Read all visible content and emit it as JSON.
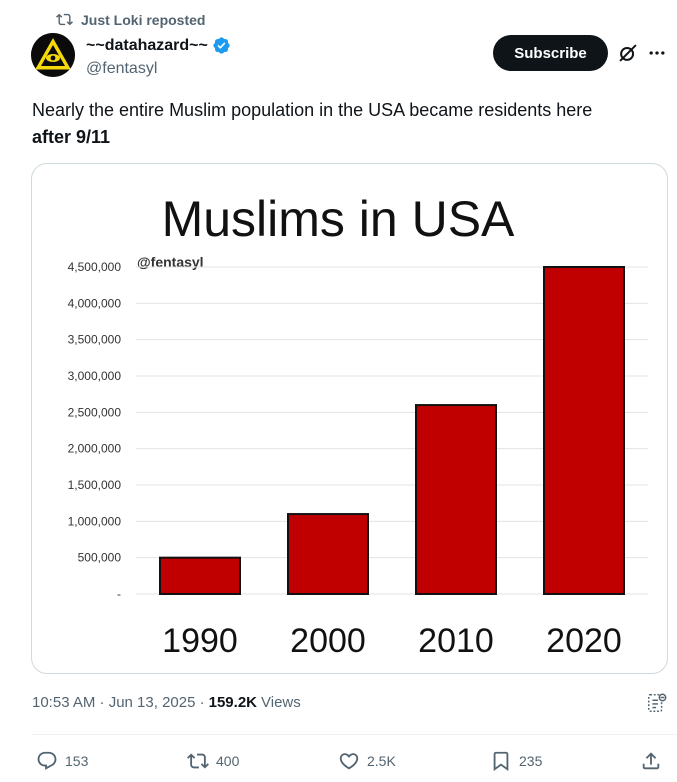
{
  "repost": {
    "label": "Just Loki reposted",
    "icon": "repost-icon"
  },
  "author": {
    "display_name": "~~datahazard~~",
    "handle": "@fentasyl",
    "verified_color": "#1d9bf0",
    "avatar_icon": "hazard-eye-avatar"
  },
  "header": {
    "subscribe_label": "Subscribe"
  },
  "tweet": {
    "text": "Nearly the entire Muslim population in the USA became residents here",
    "text_bold": "after 9/11"
  },
  "chart_data": {
    "type": "bar",
    "title": "Muslims in USA",
    "watermark": "@fentasyl",
    "categories": [
      "1990",
      "2000",
      "2010",
      "2020"
    ],
    "values": [
      500000,
      1100000,
      2600000,
      4500000
    ],
    "ylim": [
      0,
      4500000
    ],
    "yticks": [
      "-",
      "500,000",
      "1,000,000",
      "1,500,000",
      "2,000,000",
      "2,500,000",
      "3,000,000",
      "3,500,000",
      "4,000,000",
      "4,500,000"
    ],
    "bar_color": "#c00000",
    "grid": true,
    "legend": "none"
  },
  "meta": {
    "time": "10:53 AM · Jun 13, 2025 · ",
    "views_count": "159.2K",
    "views_label": "Views"
  },
  "actions": {
    "replies": "153",
    "reposts": "400",
    "likes": "2.5K",
    "bookmarks": "235"
  }
}
